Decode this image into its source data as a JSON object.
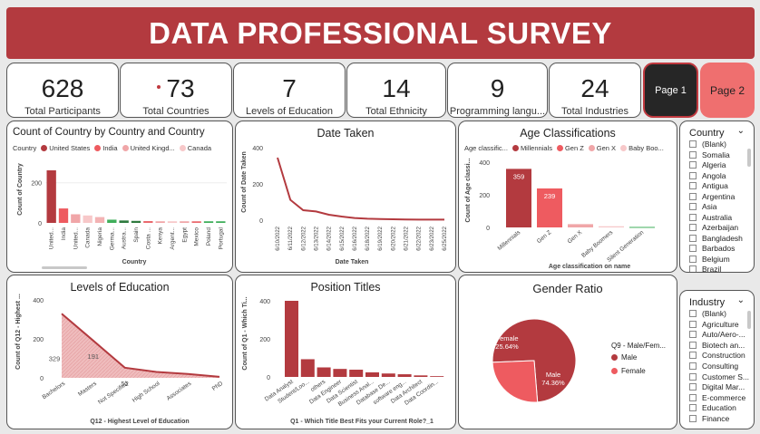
{
  "title": "DATA PROFESSIONAL SURVEY",
  "kpis": [
    {
      "value": "628",
      "label": "Total Participants"
    },
    {
      "value": "73",
      "label": "Total Countries"
    },
    {
      "value": "7",
      "label": "Levels of Education"
    },
    {
      "value": "14",
      "label": "Total Ethnicity"
    },
    {
      "value": "9",
      "label": "Programming langu..."
    },
    {
      "value": "24",
      "label": "Total Industries"
    }
  ],
  "pages": {
    "page1": "Page 1",
    "page2": "Page 2"
  },
  "colors": {
    "brand": "#b33a3f",
    "red": "#c0393f",
    "light_red": "#ee5b60",
    "pink": "#f0a6a8",
    "green": "#3fae5a",
    "dark_green": "#2f7a3f"
  },
  "country_chart": {
    "title": "Count of Country by Country and Country",
    "legend_label": "Country",
    "legend": [
      "United States",
      "India",
      "United Kingd...",
      "Canada"
    ],
    "xlabel": "Country",
    "ylabel": "Count of Country",
    "ticks": [
      "200",
      "0"
    ]
  },
  "date_chart": {
    "title": "Date Taken",
    "xlabel": "Date Taken",
    "ylabel": "Count of Date Taken",
    "ticks": [
      "400",
      "200",
      "0"
    ]
  },
  "age_chart": {
    "title": "Age Classifications",
    "legend_label": "Age classific...",
    "legend": [
      "Millennials",
      "Gen Z",
      "Gen X",
      "Baby Boo..."
    ],
    "xlabel": "Age classification on name",
    "ylabel": "Count of Age classi...",
    "ticks": [
      "400",
      "200",
      "0"
    ]
  },
  "edu_chart": {
    "title": "Levels of Education",
    "xlabel": "Q12 - Highest Level of Education",
    "ylabel": "Count of Q12 - Highest ...",
    "ticks": [
      "400",
      "200",
      "0"
    ]
  },
  "pos_chart": {
    "title": "Position Titles",
    "xlabel": "Q1 - Which Title Best Fits your Current Role?_1",
    "ylabel": "Count of Q1 - Which Ti...",
    "ticks": [
      "400",
      "200",
      "0"
    ]
  },
  "gender_chart": {
    "title": "Gender Ratio",
    "legend_title": "Q9 - Male/Fem...",
    "legend": [
      "Male",
      "Female"
    ]
  },
  "country_slicer": {
    "header": "Country",
    "items": [
      "(Blank)",
      "Somalia",
      "Algeria",
      "Angola",
      "Antigua",
      "Argentina",
      "Asia",
      "Australia",
      "Azerbaijan",
      "Bangladesh",
      "Barbados",
      "Belgium",
      "Brazil"
    ]
  },
  "industry_slicer": {
    "header": "Industry",
    "items": [
      "(Blank)",
      "Agriculture",
      "Auto/Aero-...",
      "Biotech an...",
      "Construction",
      "Consulting",
      "Customer S...",
      "Digital Mar...",
      "E-commerce",
      "Education",
      "Finance"
    ]
  },
  "chart_data": [
    {
      "type": "bar",
      "title": "Count of Country by Country and Country",
      "xlabel": "Country",
      "ylabel": "Count of Country",
      "categories": [
        "United...",
        "India",
        "United...",
        "Canada",
        "Nigeria",
        "Germa...",
        "Austra...",
        "Spain",
        "Costa ...",
        "Kenya",
        "Argent...",
        "Egypt",
        "Mexico",
        "Poland",
        "Portugal"
      ],
      "values": [
        262,
        72,
        43,
        37,
        29,
        16,
        12,
        10,
        9,
        8,
        8,
        8,
        8,
        8,
        8
      ],
      "colors": [
        "#b33a3f",
        "#ee5b60",
        "#f0a6a8",
        "#f7c8c9",
        "#f3b3b4",
        "#3fae5a",
        "#2f7a3f",
        "#2f7a3f",
        "#ea6a6e",
        "#f1a5a7",
        "#f7c8c9",
        "#f0a6a8",
        "#ea6a6e",
        "#3fae5a",
        "#3fae5a"
      ],
      "ylim": [
        0,
        300
      ]
    },
    {
      "type": "line",
      "title": "Date Taken",
      "xlabel": "Date Taken",
      "ylabel": "Count of Date Taken",
      "x": [
        "6/10/2022",
        "6/11/2022",
        "6/12/2022",
        "6/13/2022",
        "6/14/2022",
        "6/15/2022",
        "6/16/2022",
        "6/18/2022",
        "6/19/2022",
        "6/20/2022",
        "6/21/2022",
        "6/22/2022",
        "6/23/2022",
        "6/25/2022"
      ],
      "values": [
        345,
        112,
        55,
        48,
        30,
        20,
        12,
        8,
        6,
        5,
        4,
        3,
        3,
        3
      ],
      "ylim": [
        0,
        400
      ]
    },
    {
      "type": "bar",
      "title": "Age Classifications",
      "xlabel": "Age classification on name",
      "ylabel": "Count of Age classi...",
      "categories": [
        "Millennials",
        "Gen Z",
        "Gen X",
        "Baby Boomers",
        "Silent Generation"
      ],
      "values": [
        359,
        239,
        20,
        7,
        3
      ],
      "colors": [
        "#b33a3f",
        "#ee5b60",
        "#f0a6a8",
        "#f7c8c9",
        "#3fae5a"
      ],
      "ylim": [
        0,
        400
      ]
    },
    {
      "type": "area",
      "title": "Levels of Education",
      "xlabel": "Q12 - Highest Level of Education",
      "ylabel": "Count of Q12 - Highest ...",
      "categories": [
        "Bachelors",
        "Masters",
        "Not Specified",
        "High School",
        "Associates",
        "PhD"
      ],
      "values": [
        329,
        191,
        52,
        30,
        20,
        5
      ],
      "labels": [
        "329",
        "191",
        "52",
        "",
        "",
        ""
      ],
      "ylim": [
        0,
        400
      ]
    },
    {
      "type": "bar",
      "title": "Position Titles",
      "xlabel": "Q1 - Which Title Best Fits your Current Role?_1",
      "ylabel": "Count of Q1 - Which Ti...",
      "categories": [
        "Data Analyst",
        "Student/Loo...",
        "others",
        "Data Engineer",
        "Data Scientist",
        "Business Anal...",
        "Database De...",
        "software eng...",
        "Data Architect",
        "Data Coordin..."
      ],
      "values": [
        400,
        93,
        50,
        42,
        38,
        24,
        18,
        14,
        8,
        4
      ],
      "ylim": [
        0,
        450
      ]
    },
    {
      "type": "pie",
      "title": "Gender Ratio",
      "categories": [
        "Male",
        "Female"
      ],
      "values": [
        74.36,
        25.64
      ],
      "labels": [
        "Male\n74.36%",
        "Female\n25.64%"
      ],
      "colors": [
        "#b33a3f",
        "#ee5b60"
      ]
    }
  ]
}
